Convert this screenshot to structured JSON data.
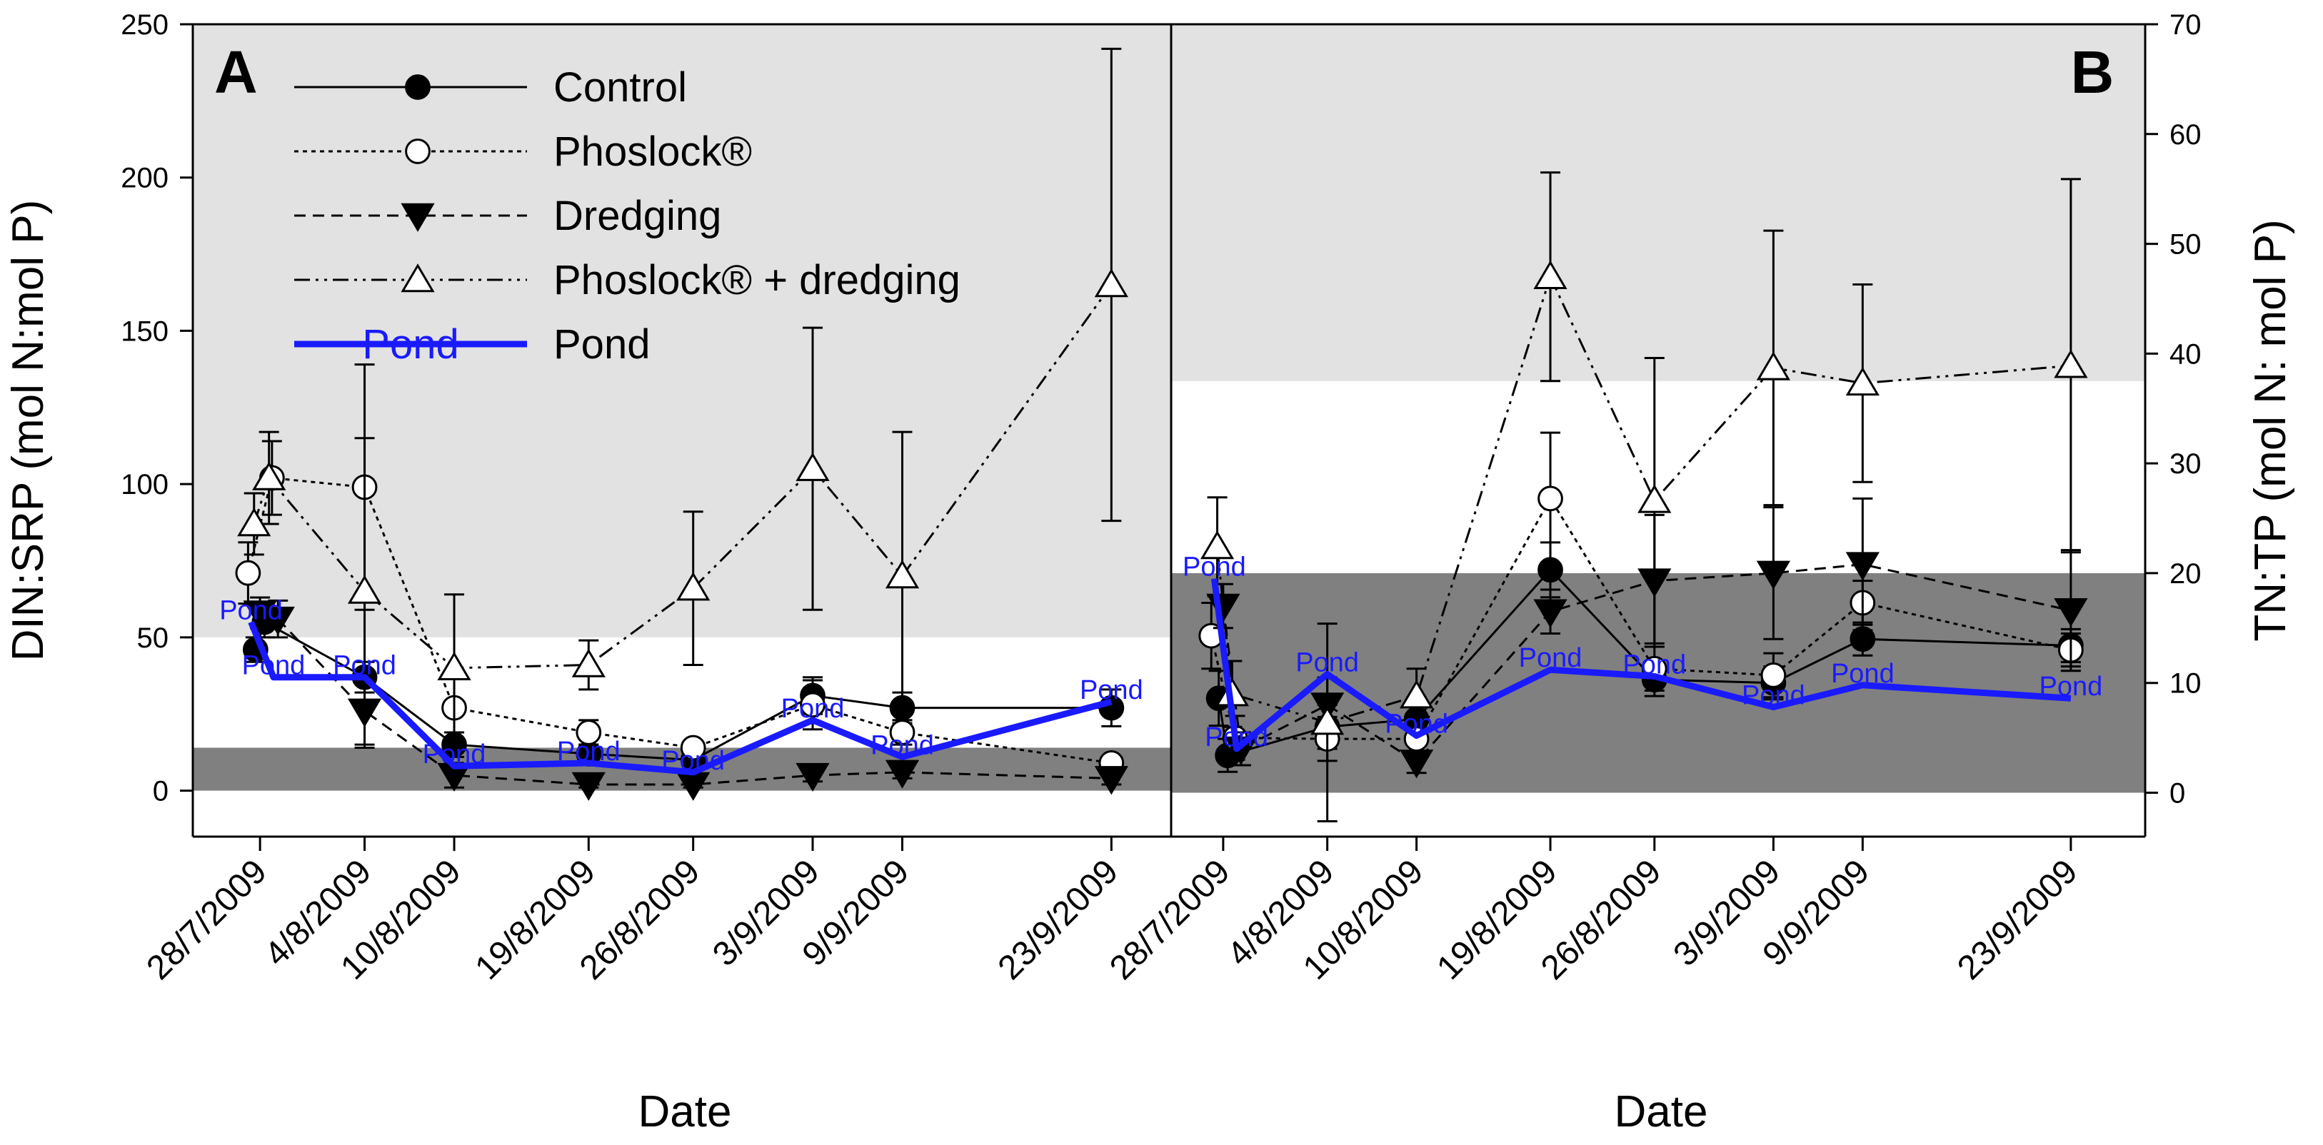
{
  "chart_data": [
    {
      "panel": "A",
      "type": "line",
      "ylabel": "DIN:SRP (mol N:mol P)",
      "xlabel": "Date",
      "ylim": [
        -15,
        250
      ],
      "yticks": [
        0,
        50,
        100,
        150,
        200,
        250
      ],
      "bands": [
        {
          "from": 0,
          "to": 14,
          "color": "#808080"
        },
        {
          "from": 50,
          "to": 250,
          "color": "#e2e2e2"
        }
      ],
      "dates": [
        "28/7/2009",
        "4/8/2009",
        "10/8/2009",
        "19/8/2009",
        "26/8/2009",
        "3/9/2009",
        "9/9/2009",
        "23/9/2009"
      ],
      "series": [
        {
          "name": "Control",
          "marker": "filled-circle",
          "dash": "",
          "x": [
            -0.3,
            0.3,
            7,
            13,
            22,
            29,
            37,
            43,
            57
          ],
          "y": [
            46,
            55,
            37,
            15,
            12,
            10,
            31,
            27,
            27
          ],
          "err": [
            4,
            5,
            5,
            4,
            3,
            3,
            6,
            5,
            6
          ]
        },
        {
          "name": "Phoslock®",
          "marker": "open-circle",
          "dash": "6,6",
          "x": [
            -0.8,
            0.8,
            7,
            13,
            22,
            29,
            37,
            43,
            57
          ],
          "y": [
            71,
            102,
            99,
            27,
            19,
            14,
            28,
            19,
            9
          ],
          "err": [
            10,
            12,
            40,
            10,
            4,
            2,
            8,
            4,
            2
          ]
        },
        {
          "name": "Dredging",
          "marker": "filled-triangle-down",
          "dash": "16,10",
          "x": [
            0,
            1.2,
            7,
            13,
            22,
            29,
            37,
            43,
            57
          ],
          "y": [
            58,
            56,
            26,
            5,
            2,
            2,
            5,
            6,
            4
          ],
          "err": [
            5,
            6,
            12,
            4,
            1,
            1,
            2,
            2,
            2
          ]
        },
        {
          "name": "Phoslock® + dredging",
          "marker": "open-triangle-up",
          "dash": "22,8,4,8,4,8",
          "x": [
            -0.4,
            0.6,
            7,
            13,
            22,
            29,
            37,
            43,
            57
          ],
          "y": [
            87,
            102,
            65,
            40,
            41,
            66,
            105,
            70,
            165
          ],
          "err": [
            10,
            15,
            50,
            24,
            8,
            25,
            46,
            47,
            77
          ]
        },
        {
          "name": "Pond",
          "marker": "none",
          "dash": "",
          "x": [
            -0.6,
            0.9,
            7,
            13,
            22,
            29,
            37,
            43,
            57
          ],
          "y": [
            55,
            37,
            37,
            8,
            9,
            6,
            23,
            11,
            29
          ],
          "point_labels": [
            "Pond",
            "Pond",
            "Pond",
            "Pond",
            "Pond",
            "Pond",
            "Pond",
            "Pond",
            "Pond"
          ]
        }
      ]
    },
    {
      "panel": "B",
      "type": "line",
      "ylabel": "TN:TP (mol N: mol P)",
      "xlabel": "Date",
      "ylim": [
        -4,
        70
      ],
      "yticks": [
        0,
        10,
        20,
        30,
        40,
        50,
        60,
        70
      ],
      "bands": [
        {
          "from": 0,
          "to": 20,
          "color": "#808080"
        },
        {
          "from": 37.5,
          "to": 70,
          "color": "#e2e2e2"
        }
      ],
      "dates": [
        "28/7/2009",
        "4/8/2009",
        "10/8/2009",
        "19/8/2009",
        "26/8/2009",
        "3/9/2009",
        "9/9/2009",
        "23/9/2009"
      ],
      "series": [
        {
          "name": "Control",
          "marker": "filled-circle",
          "dash": "",
          "x": [
            -0.3,
            0.3,
            7,
            13,
            22,
            29,
            37,
            43,
            57
          ],
          "y": [
            8.6,
            3.4,
            6.0,
            6.7,
            20.3,
            10.3,
            10.0,
            14.0,
            13.4
          ],
          "err": [
            2.5,
            1.5,
            2.0,
            2.0,
            2.5,
            1.5,
            1.5,
            1.5,
            1.5
          ]
        },
        {
          "name": "Phoslock®",
          "marker": "open-circle",
          "dash": "6,6",
          "x": [
            -0.8,
            0.8,
            7,
            13,
            22,
            29,
            37,
            43,
            57
          ],
          "y": [
            14.3,
            5.0,
            4.9,
            4.9,
            26.8,
            11.3,
            10.7,
            17.3,
            13.0
          ],
          "err": [
            3,
            2,
            2,
            1.5,
            6,
            2,
            2,
            2,
            1.5
          ]
        },
        {
          "name": "Dredging",
          "marker": "filled-triangle-down",
          "dash": "16,10",
          "x": [
            0,
            1.2,
            7,
            13,
            22,
            29,
            37,
            43,
            57
          ],
          "y": [
            17.0,
            4.0,
            8.0,
            2.8,
            16.5,
            19.3,
            20.0,
            20.8,
            16.6
          ],
          "err": [
            2,
            1.5,
            2.5,
            1,
            2,
            6,
            6,
            6,
            5.5
          ]
        },
        {
          "name": "Phoslock® + dredging",
          "marker": "open-triangle-up",
          "dash": "22,8,4,8,4,8",
          "x": [
            -0.4,
            0.6,
            7,
            13,
            22,
            29,
            37,
            43,
            57
          ],
          "y": [
            22.4,
            9.0,
            6.4,
            8.8,
            47.0,
            26.6,
            38.7,
            37.3,
            38.9
          ],
          "err": [
            4.5,
            3,
            9,
            2.5,
            9.5,
            13,
            12.5,
            9,
            17
          ]
        },
        {
          "name": "Pond",
          "marker": "none",
          "dash": "",
          "x": [
            -0.6,
            0.9,
            7,
            13,
            22,
            29,
            37,
            43,
            57
          ],
          "y": [
            19.5,
            4.0,
            10.8,
            5.2,
            11.2,
            10.6,
            7.8,
            9.8,
            8.6
          ],
          "point_labels": [
            "Pond",
            "Pond",
            "Pond",
            "Pond",
            "Pond",
            "Pond",
            "Pond",
            "Pond",
            "Pond"
          ]
        }
      ]
    }
  ]
}
